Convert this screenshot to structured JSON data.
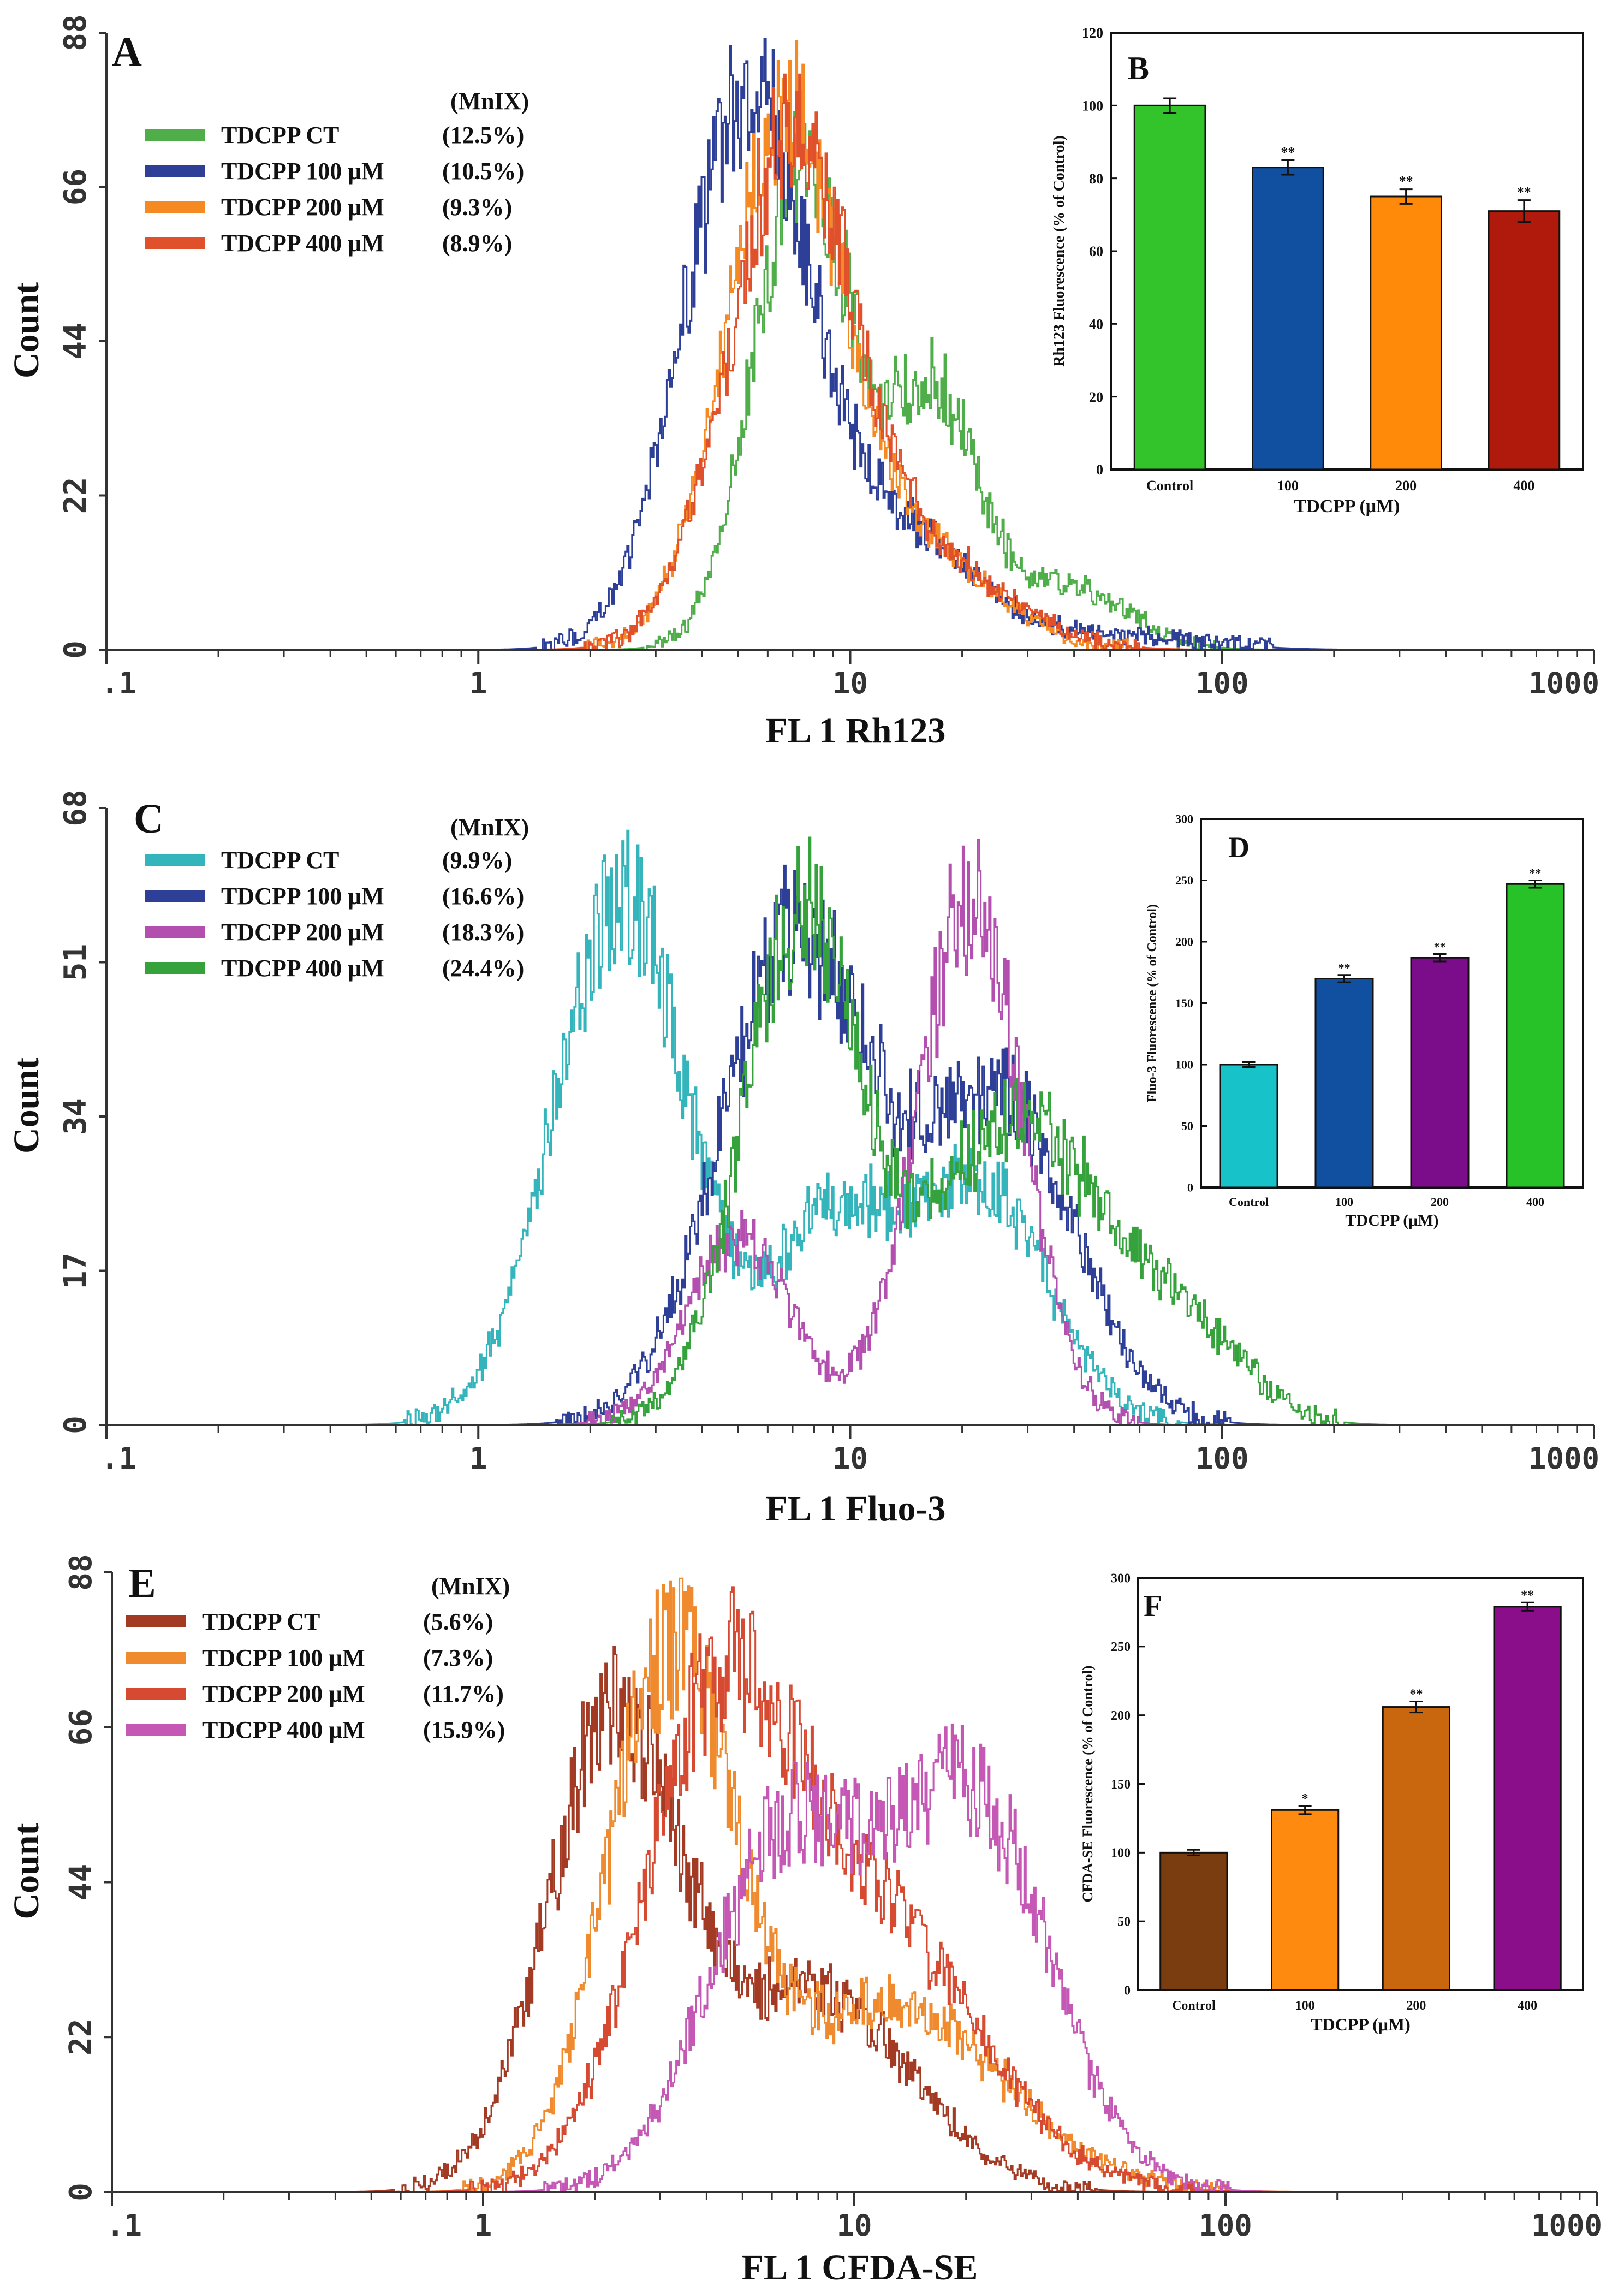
{
  "chart_data": [
    {
      "id": "A",
      "type": "histogram",
      "panel_label": "A",
      "xlabel": "FL 1 Rh123",
      "ylabel": "Count",
      "x_scale": "log",
      "xlim": [
        0.1,
        1000
      ],
      "ylim": [
        0,
        88
      ],
      "x_ticks": [
        ".1",
        "1",
        "10",
        "100",
        "1000"
      ],
      "y_ticks": [
        "0",
        "22",
        "44",
        "66",
        "88"
      ],
      "legend_header": "(MnIX)",
      "series": [
        {
          "name": "TDCPP CT",
          "mnix": "(12.5%)",
          "color": "#4fae49",
          "peaks": [
            {
              "mu": 0.87,
              "sd": 0.13,
              "h": 70
            },
            {
              "mu": 1.22,
              "sd": 0.12,
              "h": 36
            },
            {
              "mu": 1.58,
              "sd": 0.16,
              "h": 9
            }
          ]
        },
        {
          "name": "TDCPP 100 μM",
          "mnix": "(10.5%)",
          "color": "#2e3f98",
          "peaks": [
            {
              "mu": 0.72,
              "sd": 0.17,
              "h": 78
            },
            {
              "mu": 1.15,
              "sd": 0.2,
              "h": 16
            },
            {
              "mu": 1.75,
              "sd": 0.2,
              "h": 2
            }
          ]
        },
        {
          "name": "TDCPP 200 μM",
          "mnix": "(9.3%)",
          "color": "#f58a22",
          "peaks": [
            {
              "mu": 0.82,
              "sd": 0.16,
              "h": 74
            },
            {
              "mu": 1.2,
              "sd": 0.2,
              "h": 13
            }
          ]
        },
        {
          "name": "TDCPP 400 μM",
          "mnix": "(8.9%)",
          "color": "#e0502a",
          "peaks": [
            {
              "mu": 0.84,
              "sd": 0.17,
              "h": 72
            },
            {
              "mu": 1.25,
              "sd": 0.2,
              "h": 11
            }
          ]
        }
      ]
    },
    {
      "id": "B",
      "type": "bar",
      "panel_label": "B",
      "title": "",
      "xlabel": "TDCPP (μM)",
      "ylabel": "Rh123 Fluorescence (% of Control)",
      "ylim": [
        0,
        120
      ],
      "y_ticks": [
        "0",
        "20",
        "40",
        "60",
        "80",
        "100",
        "120"
      ],
      "categories": [
        "Control",
        "100",
        "200",
        "400"
      ],
      "values": [
        100,
        83,
        75,
        71
      ],
      "errors": [
        2,
        2,
        2,
        3
      ],
      "significance": [
        "",
        "**",
        "**",
        "**"
      ],
      "colors": [
        "#33c42c",
        "#114fa0",
        "#ff8a0a",
        "#b01a0c"
      ]
    },
    {
      "id": "C",
      "type": "histogram",
      "panel_label": "C",
      "xlabel": "FL 1 Fluo-3",
      "ylabel": "Count",
      "x_scale": "log",
      "xlim": [
        0.1,
        1000
      ],
      "ylim": [
        0,
        68
      ],
      "x_ticks": [
        ".1",
        "1",
        "10",
        "100",
        "1000"
      ],
      "y_ticks": [
        "0",
        "17",
        "34",
        "51",
        "68"
      ],
      "legend_header": "(MnIX)",
      "series": [
        {
          "name": "TDCPP CT",
          "mnix": "(9.9%)",
          "color": "#34b4bb",
          "peaks": [
            {
              "mu": 0.38,
              "sd": 0.18,
              "h": 58
            },
            {
              "mu": 0.95,
              "sd": 0.16,
              "h": 22
            },
            {
              "mu": 1.35,
              "sd": 0.18,
              "h": 26
            }
          ]
        },
        {
          "name": "TDCPP 100 μM",
          "mnix": "(16.6%)",
          "color": "#2e3f98",
          "peaks": [
            {
              "mu": 0.85,
              "sd": 0.2,
              "h": 54
            },
            {
              "mu": 1.4,
              "sd": 0.2,
              "h": 36
            }
          ]
        },
        {
          "name": "TDCPP 200 μM",
          "mnix": "(18.3%)",
          "color": "#b34fae",
          "peaks": [
            {
              "mu": 0.7,
              "sd": 0.14,
              "h": 21
            },
            {
              "mu": 1.32,
              "sd": 0.14,
              "h": 58
            }
          ]
        },
        {
          "name": "TDCPP 400 μM",
          "mnix": "(24.4%)",
          "color": "#35a23c",
          "peaks": [
            {
              "mu": 0.87,
              "sd": 0.16,
              "h": 56
            },
            {
              "mu": 1.45,
              "sd": 0.22,
              "h": 34
            },
            {
              "mu": 1.9,
              "sd": 0.16,
              "h": 10
            }
          ]
        }
      ]
    },
    {
      "id": "D",
      "type": "bar",
      "panel_label": "D",
      "title": "",
      "xlabel": "TDCPP (μM)",
      "ylabel": "Fluo-3 Fluorescence (% of Control)",
      "ylim": [
        0,
        300
      ],
      "y_ticks": [
        "0",
        "50",
        "100",
        "150",
        "200",
        "250",
        "300"
      ],
      "categories": [
        "Control",
        "100",
        "200",
        "400"
      ],
      "values": [
        100,
        170,
        187,
        247
      ],
      "errors": [
        2,
        3,
        3,
        3
      ],
      "significance": [
        "",
        "**",
        "**",
        "**"
      ],
      "colors": [
        "#17c2c8",
        "#114fa0",
        "#7b0d8a",
        "#27c227"
      ]
    },
    {
      "id": "E",
      "type": "histogram",
      "panel_label": "E",
      "xlabel": "FL 1 CFDA-SE",
      "ylabel": "Count",
      "x_scale": "log",
      "xlim": [
        0.1,
        1000
      ],
      "ylim": [
        0,
        88
      ],
      "x_ticks": [
        ".1",
        "1",
        "10",
        "100",
        "1000"
      ],
      "y_ticks": [
        "0",
        "22",
        "44",
        "66",
        "88"
      ],
      "legend_header": "(MnIX)",
      "series": [
        {
          "name": "TDCPP CT",
          "mnix": "(5.6%)",
          "color": "#a33a24",
          "peaks": [
            {
              "mu": 0.35,
              "sd": 0.18,
              "h": 66
            },
            {
              "mu": 0.9,
              "sd": 0.25,
              "h": 28
            }
          ]
        },
        {
          "name": "TDCPP 100 μM",
          "mnix": "(7.3%)",
          "color": "#f08a2e",
          "peaks": [
            {
              "mu": 0.5,
              "sd": 0.17,
              "h": 74
            },
            {
              "mu": 1.1,
              "sd": 0.3,
              "h": 26
            }
          ]
        },
        {
          "name": "TDCPP 200 μM",
          "mnix": "(11.7%)",
          "color": "#d54a30",
          "peaks": [
            {
              "mu": 0.62,
              "sd": 0.2,
              "h": 62
            },
            {
              "mu": 1.05,
              "sd": 0.28,
              "h": 38
            }
          ]
        },
        {
          "name": "TDCPP 400 μM",
          "mnix": "(15.9%)",
          "color": "#c557b5",
          "peaks": [
            {
              "mu": 0.8,
              "sd": 0.2,
              "h": 48
            },
            {
              "mu": 1.3,
              "sd": 0.22,
              "h": 56
            }
          ]
        }
      ]
    },
    {
      "id": "F",
      "type": "bar",
      "panel_label": "F",
      "title": "",
      "xlabel": "TDCPP (μM)",
      "ylabel": "CFDA-SE Fluorescence (% of Control)",
      "ylim": [
        0,
        300
      ],
      "y_ticks": [
        "0",
        "50",
        "100",
        "150",
        "200",
        "250",
        "300"
      ],
      "categories": [
        "Control",
        "100",
        "200",
        "400"
      ],
      "values": [
        100,
        131,
        206,
        279
      ],
      "errors": [
        2,
        3,
        4,
        3
      ],
      "significance": [
        "",
        "*",
        "**",
        "**"
      ],
      "colors": [
        "#7a3d0f",
        "#ff8a10",
        "#c8670e",
        "#8a0d8a"
      ]
    }
  ]
}
